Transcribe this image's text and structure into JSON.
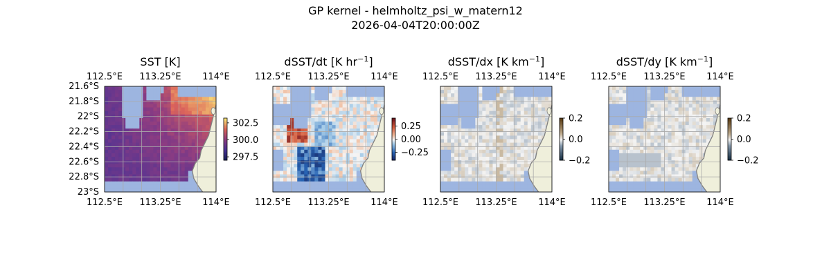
{
  "figure": {
    "title_line1": "GP kernel - helmholtz_psi_w_matern12",
    "title_line2": "2026-04-04T20:00:00Z"
  },
  "colors": {
    "land": "#efefdb",
    "mask": "#9db5e0",
    "grid": "#aaaaaa",
    "coast": "#808080"
  },
  "chart_data": [
    {
      "type": "heatmap",
      "title": "SST [K]",
      "xlabel": "",
      "ylabel": "",
      "x_ticks": [
        "112.5°E",
        "113.25°E",
        "114°E"
      ],
      "x_tick_values": [
        112.5,
        113.25,
        114.0
      ],
      "y_ticks": [
        "21.6°S",
        "21.8°S",
        "22°S",
        "22.2°S",
        "22.4°S",
        "22.6°S",
        "22.8°S",
        "23°S"
      ],
      "y_tick_values": [
        -21.6,
        -21.8,
        -22.0,
        -22.2,
        -22.4,
        -22.6,
        -22.8,
        -23.0
      ],
      "xlim": [
        112.5,
        114.0
      ],
      "ylim": [
        -23.0,
        -21.6
      ],
      "show_y_labels": true,
      "grid": true,
      "colormap": "thermal",
      "colorbar": {
        "vmin": 297.0,
        "vmax": 303.2,
        "ticks": [
          297.5,
          300.0,
          302.5
        ],
        "tick_labels": [
          "297.5",
          "300.0",
          "302.5"
        ]
      }
    },
    {
      "type": "heatmap",
      "title": "dSST/dt [K hr",
      "title_sup": "−1",
      "title_end": "]",
      "xlabel": "",
      "ylabel": "",
      "x_ticks": [
        "112.5°E",
        "113.25°E",
        "114°E"
      ],
      "x_tick_values": [
        112.5,
        113.25,
        114.0
      ],
      "xlim": [
        112.5,
        114.0
      ],
      "ylim": [
        -23.0,
        -21.6
      ],
      "show_y_labels": false,
      "grid": true,
      "colormap": "balance",
      "colorbar": {
        "vmin": -0.4,
        "vmax": 0.4,
        "ticks": [
          0.25,
          0.0,
          -0.25
        ],
        "tick_labels": [
          "0.25",
          "0.00",
          "−0.25"
        ]
      }
    },
    {
      "type": "heatmap",
      "title": "dSST/dx [K km",
      "title_sup": "−1",
      "title_end": "]",
      "xlabel": "",
      "ylabel": "",
      "x_ticks": [
        "112.5°E",
        "113.25°E",
        "114°E"
      ],
      "x_tick_values": [
        112.5,
        113.25,
        114.0
      ],
      "xlim": [
        112.5,
        114.0
      ],
      "ylim": [
        -23.0,
        -21.6
      ],
      "show_y_labels": false,
      "grid": true,
      "colormap": "diff",
      "colorbar": {
        "vmin": -0.2,
        "vmax": 0.2,
        "ticks": [
          0.2,
          0.0,
          -0.2
        ],
        "tick_labels": [
          "0.2",
          "0.0",
          "−0.2"
        ]
      }
    },
    {
      "type": "heatmap",
      "title": "dSST/dy [K km",
      "title_sup": "−1",
      "title_end": "]",
      "xlabel": "",
      "ylabel": "",
      "x_ticks": [
        "112.5°E",
        "113.25°E",
        "114°E"
      ],
      "x_tick_values": [
        112.5,
        113.25,
        114.0
      ],
      "xlim": [
        112.5,
        114.0
      ],
      "ylim": [
        -23.0,
        -21.6
      ],
      "show_y_labels": false,
      "grid": true,
      "colormap": "diff",
      "colorbar": {
        "vmin": -0.2,
        "vmax": 0.2,
        "ticks": [
          0.2,
          0.0,
          -0.2
        ],
        "tick_labels": [
          "0.2",
          "0.0",
          "−0.2"
        ]
      }
    }
  ]
}
